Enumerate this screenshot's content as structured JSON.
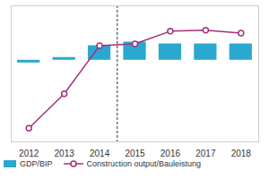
{
  "chart_data": {
    "type": "bar",
    "x": [
      2012,
      2013,
      2014,
      2015,
      2016,
      2017,
      2018
    ],
    "xlim": [
      2011.5,
      2018.5
    ],
    "xticks": [
      2012,
      2013,
      2014,
      2015,
      2016,
      2017,
      2018
    ],
    "ylim": [
      -9,
      6
    ],
    "tick_labels": "x",
    "grid": false,
    "legend": "bottom",
    "vlines": [
      2014.5
    ],
    "series": [
      {
        "name": "GDP/BIP",
        "type": "bar",
        "color": "#2aa8d0",
        "values": [
          -0.3,
          0.3,
          1.6,
          2.0,
          1.8,
          1.8,
          1.8
        ]
      },
      {
        "name": "Construction output/Bauleistung",
        "type": "line",
        "color": "#a3307d",
        "marker": "circle",
        "values": [
          -7.5,
          -3.7,
          1.6,
          1.8,
          3.2,
          3.3,
          3.0
        ]
      }
    ]
  }
}
